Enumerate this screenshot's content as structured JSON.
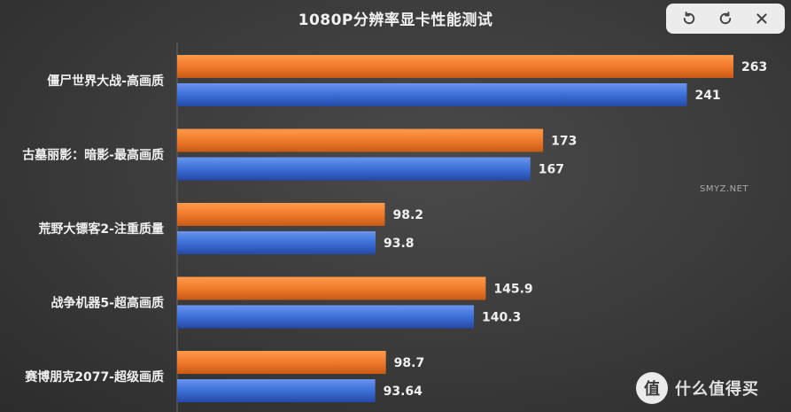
{
  "chart_data": {
    "type": "bar",
    "orientation": "horizontal",
    "title": "1080P分辨率显卡性能测试",
    "categories": [
      "僵尸世界大战-高画质",
      "古墓丽影：暗影-最高画质",
      "荒野大镖客2-注重质量",
      "战争机器5-超高画质",
      "赛博朋克2077-超级画质"
    ],
    "series": [
      {
        "values": [
          263,
          173,
          98.2,
          145.9,
          98.7
        ],
        "labels": [
          "263",
          "173",
          "98.2",
          "145.9",
          "98.7"
        ],
        "color": "#f07a2c"
      },
      {
        "values": [
          241,
          167,
          93.8,
          140.3,
          93.64
        ],
        "labels": [
          "241",
          "167",
          "93.8",
          "140.3",
          "93.64"
        ],
        "color": "#3d6fd6"
      }
    ],
    "xlim": [
      0,
      263
    ],
    "legend": "none",
    "grid": false
  },
  "controls": {
    "undo_icon": "undo-icon",
    "refresh_icon": "refresh-icon",
    "close_icon": "close-icon"
  },
  "watermark": {
    "logo_glyph": "值",
    "text": "什么值得买",
    "site": "SMYZ.NET"
  }
}
